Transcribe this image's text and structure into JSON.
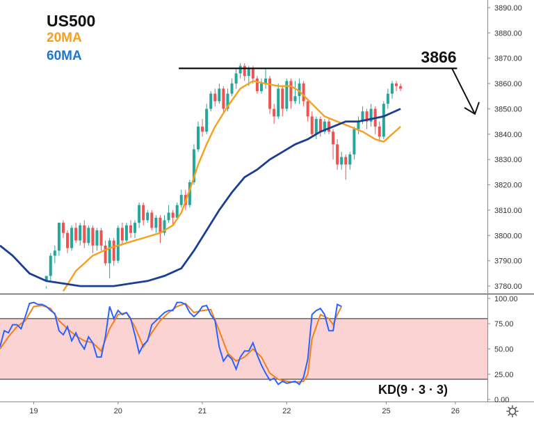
{
  "chart_data": [
    {
      "type": "candlestick",
      "symbol": "US500",
      "ma_labels": [
        {
          "name": "20MA",
          "color": "#f5a01e"
        },
        {
          "name": "60MA",
          "color": "#1f76d2"
        }
      ],
      "y_ticks": [
        "3780.00",
        "3790.00",
        "3800.00",
        "3810.00",
        "3820.00",
        "3830.00",
        "3840.00",
        "3850.00",
        "3860.00",
        "3870.00",
        "3880.00",
        "3890.00"
      ],
      "ylim": [
        3777,
        3893
      ],
      "x_ticks": [
        "19",
        "20",
        "21",
        "22",
        "25",
        "26"
      ],
      "x_tick_positions": [
        19.0,
        20.0,
        21.0,
        22.0,
        23.18,
        24.0
      ],
      "xlim": [
        18.6,
        24.38
      ],
      "resistance": {
        "value": 3866,
        "label": "3866",
        "x_from": 20.72,
        "x_to": 24.02
      },
      "colors": {
        "up": "#26a69a",
        "down": "#ef5350",
        "ma20": "#f5a01e",
        "ma60": "#1a3e93",
        "resistance": "#111111"
      },
      "candles": [
        [
          19.15,
          3782,
          3784,
          3780,
          3779
        ],
        [
          19.2,
          3784,
          3792,
          3793,
          3782
        ],
        [
          19.25,
          3792,
          3794,
          3796,
          3789
        ],
        [
          19.3,
          3794,
          3805,
          3805,
          3792
        ],
        [
          19.35,
          3805,
          3801,
          3806,
          3799
        ],
        [
          19.4,
          3801,
          3795,
          3802,
          3793
        ],
        [
          19.45,
          3795,
          3803,
          3804,
          3794
        ],
        [
          19.5,
          3803,
          3798,
          3805,
          3797
        ],
        [
          19.55,
          3798,
          3804,
          3805,
          3796
        ],
        [
          19.6,
          3804,
          3797,
          3806,
          3795
        ],
        [
          19.65,
          3797,
          3803,
          3804,
          3796
        ],
        [
          19.7,
          3803,
          3796,
          3804,
          3793
        ],
        [
          19.75,
          3796,
          3802,
          3803,
          3794
        ],
        [
          19.8,
          3802,
          3796,
          3803,
          3794
        ],
        [
          19.85,
          3796,
          3789,
          3798,
          3788
        ],
        [
          19.9,
          3789,
          3798,
          3799,
          3783
        ],
        [
          19.95,
          3798,
          3790,
          3799,
          3788
        ],
        [
          20.0,
          3790,
          3803,
          3804,
          3789
        ],
        [
          20.05,
          3803,
          3798,
          3805,
          3796
        ],
        [
          20.1,
          3798,
          3804,
          3805,
          3797
        ],
        [
          20.15,
          3804,
          3801,
          3806,
          3799
        ],
        [
          20.2,
          3801,
          3805,
          3806,
          3799
        ],
        [
          20.25,
          3805,
          3812,
          3813,
          3803
        ],
        [
          20.3,
          3812,
          3806,
          3813,
          3804
        ],
        [
          20.35,
          3806,
          3809,
          3810,
          3805
        ],
        [
          20.4,
          3809,
          3803,
          3810,
          3802
        ],
        [
          20.45,
          3803,
          3807,
          3808,
          3801
        ],
        [
          20.5,
          3807,
          3801,
          3808,
          3797
        ],
        [
          20.55,
          3801,
          3806,
          3808,
          3800
        ],
        [
          20.6,
          3806,
          3809,
          3812,
          3805
        ],
        [
          20.65,
          3809,
          3807,
          3810,
          3804
        ],
        [
          20.7,
          3807,
          3812,
          3813,
          3806
        ],
        [
          20.75,
          3812,
          3816,
          3818,
          3811
        ],
        [
          20.8,
          3816,
          3812,
          3818,
          3810
        ],
        [
          20.85,
          3812,
          3821,
          3822,
          3811
        ],
        [
          20.9,
          3821,
          3834,
          3836,
          3820
        ],
        [
          20.95,
          3834,
          3843,
          3845,
          3833
        ],
        [
          21.0,
          3843,
          3841,
          3846,
          3839
        ],
        [
          21.05,
          3841,
          3850,
          3852,
          3840
        ],
        [
          21.1,
          3850,
          3856,
          3857,
          3849
        ],
        [
          21.15,
          3856,
          3853,
          3858,
          3851
        ],
        [
          21.2,
          3853,
          3858,
          3860,
          3852
        ],
        [
          21.25,
          3858,
          3850,
          3859,
          3848
        ],
        [
          21.3,
          3850,
          3856,
          3858,
          3849
        ],
        [
          21.35,
          3856,
          3860,
          3862,
          3855
        ],
        [
          21.4,
          3860,
          3864,
          3866,
          3858
        ],
        [
          21.45,
          3864,
          3867,
          3868,
          3862
        ],
        [
          21.5,
          3867,
          3863,
          3868,
          3861
        ],
        [
          21.55,
          3863,
          3866,
          3867,
          3859
        ],
        [
          21.6,
          3866,
          3862,
          3867,
          3860
        ],
        [
          21.65,
          3862,
          3857,
          3863,
          3856
        ],
        [
          21.7,
          3857,
          3860,
          3862,
          3856
        ],
        [
          21.75,
          3860,
          3862,
          3866,
          3858
        ],
        [
          21.8,
          3862,
          3850,
          3863,
          3848
        ],
        [
          21.85,
          3850,
          3847,
          3852,
          3844
        ],
        [
          21.9,
          3847,
          3858,
          3860,
          3846
        ],
        [
          21.95,
          3858,
          3850,
          3859,
          3847
        ],
        [
          22.0,
          3850,
          3861,
          3862,
          3849
        ],
        [
          22.05,
          3861,
          3853,
          3862,
          3850
        ],
        [
          22.1,
          3853,
          3855,
          3861,
          3852
        ],
        [
          22.15,
          3855,
          3860,
          3862,
          3852
        ],
        [
          22.2,
          3860,
          3853,
          3861,
          3851
        ],
        [
          22.25,
          3853,
          3847,
          3854,
          3845
        ],
        [
          22.3,
          3847,
          3840,
          3849,
          3839
        ],
        [
          22.35,
          3840,
          3846,
          3847,
          3838
        ],
        [
          22.4,
          3846,
          3841,
          3847,
          3839
        ],
        [
          22.45,
          3841,
          3845,
          3846,
          3840
        ],
        [
          22.5,
          3845,
          3841,
          3846,
          3840
        ],
        [
          22.55,
          3841,
          3836,
          3842,
          3830
        ],
        [
          22.6,
          3836,
          3828,
          3838,
          3826
        ],
        [
          22.65,
          3828,
          3831,
          3833,
          3826
        ],
        [
          22.7,
          3831,
          3828,
          3832,
          3822
        ],
        [
          22.75,
          3828,
          3832,
          3833,
          3826
        ],
        [
          22.8,
          3832,
          3842,
          3843,
          3830
        ],
        [
          22.85,
          3842,
          3845,
          3847,
          3840
        ],
        [
          22.9,
          3845,
          3849,
          3851,
          3844
        ],
        [
          22.95,
          3849,
          3845,
          3850,
          3842
        ],
        [
          23.0,
          3845,
          3850,
          3852,
          3843
        ],
        [
          23.05,
          3850,
          3843,
          3851,
          3840
        ],
        [
          23.1,
          3843,
          3839,
          3845,
          3837
        ],
        [
          23.15,
          3839,
          3852,
          3853,
          3838
        ],
        [
          23.2,
          3852,
          3856,
          3858,
          3850
        ],
        [
          23.25,
          3856,
          3860,
          3861,
          3854
        ],
        [
          23.3,
          3860,
          3859,
          3861,
          3857
        ],
        [
          23.35,
          3859,
          3858,
          3860,
          3857
        ]
      ],
      "ma20": [
        [
          19.35,
          3778
        ],
        [
          19.5,
          3786
        ],
        [
          19.7,
          3792
        ],
        [
          19.9,
          3795
        ],
        [
          20.1,
          3797
        ],
        [
          20.3,
          3799
        ],
        [
          20.5,
          3801
        ],
        [
          20.65,
          3804
        ],
        [
          20.75,
          3809
        ],
        [
          20.85,
          3818
        ],
        [
          20.95,
          3828
        ],
        [
          21.05,
          3836
        ],
        [
          21.15,
          3843
        ],
        [
          21.3,
          3851
        ],
        [
          21.45,
          3858
        ],
        [
          21.6,
          3861
        ],
        [
          21.75,
          3860
        ],
        [
          21.9,
          3859
        ],
        [
          22.05,
          3859
        ],
        [
          22.15,
          3857
        ],
        [
          22.3,
          3852
        ],
        [
          22.45,
          3847
        ],
        [
          22.6,
          3845
        ],
        [
          22.75,
          3843
        ],
        [
          22.9,
          3841
        ],
        [
          23.05,
          3838
        ],
        [
          23.15,
          3837
        ],
        [
          23.25,
          3840
        ],
        [
          23.35,
          3843
        ]
      ],
      "ma60": [
        [
          18.6,
          3796
        ],
        [
          18.75,
          3792
        ],
        [
          18.95,
          3785
        ],
        [
          19.15,
          3782
        ],
        [
          19.35,
          3781
        ],
        [
          19.55,
          3780
        ],
        [
          19.75,
          3780
        ],
        [
          19.95,
          3780
        ],
        [
          20.15,
          3781
        ],
        [
          20.35,
          3782
        ],
        [
          20.55,
          3784
        ],
        [
          20.75,
          3787
        ],
        [
          20.9,
          3794
        ],
        [
          21.05,
          3802
        ],
        [
          21.2,
          3810
        ],
        [
          21.35,
          3817
        ],
        [
          21.5,
          3823
        ],
        [
          21.65,
          3826
        ],
        [
          21.8,
          3830
        ],
        [
          21.95,
          3833
        ],
        [
          22.1,
          3836
        ],
        [
          22.25,
          3838
        ],
        [
          22.4,
          3841
        ],
        [
          22.55,
          3843
        ],
        [
          22.7,
          3845
        ],
        [
          22.85,
          3845
        ],
        [
          23.0,
          3846
        ],
        [
          23.15,
          3847
        ],
        [
          23.35,
          3850
        ]
      ]
    },
    {
      "type": "line",
      "title": "KD(9 · 3 · 3)",
      "y_ticks": [
        "0.00",
        "25.00",
        "50.00",
        "75.00",
        "100.00"
      ],
      "ylim": [
        -2,
        104
      ],
      "band": [
        20,
        80
      ],
      "colors": {
        "k": "#2962ff",
        "d": "#f57f17",
        "band_fill": "#fbd3d3",
        "band_line": "#222222"
      },
      "k": [
        [
          18.6,
          52
        ],
        [
          18.65,
          68
        ],
        [
          18.7,
          66
        ],
        [
          18.75,
          74
        ],
        [
          18.8,
          74
        ],
        [
          18.85,
          70
        ],
        [
          18.9,
          82
        ],
        [
          18.95,
          95
        ],
        [
          19.0,
          96
        ],
        [
          19.05,
          94
        ],
        [
          19.1,
          94
        ],
        [
          19.15,
          92
        ],
        [
          19.2,
          88
        ],
        [
          19.25,
          85
        ],
        [
          19.3,
          68
        ],
        [
          19.35,
          64
        ],
        [
          19.4,
          72
        ],
        [
          19.45,
          58
        ],
        [
          19.5,
          66
        ],
        [
          19.55,
          56
        ],
        [
          19.6,
          50
        ],
        [
          19.65,
          62
        ],
        [
          19.7,
          56
        ],
        [
          19.75,
          42
        ],
        [
          19.8,
          42
        ],
        [
          19.85,
          62
        ],
        [
          19.9,
          92
        ],
        [
          19.95,
          80
        ],
        [
          20.0,
          88
        ],
        [
          20.05,
          84
        ],
        [
          20.1,
          86
        ],
        [
          20.15,
          80
        ],
        [
          20.2,
          64
        ],
        [
          20.25,
          46
        ],
        [
          20.3,
          54
        ],
        [
          20.35,
          58
        ],
        [
          20.4,
          74
        ],
        [
          20.45,
          78
        ],
        [
          20.5,
          82
        ],
        [
          20.55,
          86
        ],
        [
          20.6,
          88
        ],
        [
          20.65,
          88
        ],
        [
          20.7,
          96
        ],
        [
          20.75,
          96
        ],
        [
          20.8,
          94
        ],
        [
          20.85,
          86
        ],
        [
          20.9,
          82
        ],
        [
          20.95,
          86
        ],
        [
          21.0,
          92
        ],
        [
          21.05,
          93
        ],
        [
          21.1,
          84
        ],
        [
          21.15,
          78
        ],
        [
          21.2,
          52
        ],
        [
          21.25,
          38
        ],
        [
          21.3,
          44
        ],
        [
          21.35,
          40
        ],
        [
          21.4,
          30
        ],
        [
          21.45,
          42
        ],
        [
          21.5,
          48
        ],
        [
          21.55,
          48
        ],
        [
          21.6,
          56
        ],
        [
          21.65,
          44
        ],
        [
          21.7,
          34
        ],
        [
          21.75,
          26
        ],
        [
          21.8,
          19
        ],
        [
          21.85,
          21
        ],
        [
          21.9,
          15
        ],
        [
          21.95,
          18
        ],
        [
          22.0,
          16
        ],
        [
          22.05,
          17
        ],
        [
          22.1,
          18
        ],
        [
          22.15,
          15
        ],
        [
          22.2,
          22
        ],
        [
          22.25,
          40
        ],
        [
          22.3,
          84
        ],
        [
          22.35,
          88
        ],
        [
          22.4,
          90
        ],
        [
          22.45,
          84
        ],
        [
          22.5,
          68
        ],
        [
          22.55,
          68
        ],
        [
          22.6,
          94
        ],
        [
          22.65,
          92
        ]
      ],
      "d": [
        [
          18.6,
          50
        ],
        [
          18.7,
          62
        ],
        [
          18.8,
          72
        ],
        [
          18.9,
          78
        ],
        [
          19.0,
          92
        ],
        [
          19.1,
          93
        ],
        [
          19.2,
          90
        ],
        [
          19.3,
          78
        ],
        [
          19.4,
          70
        ],
        [
          19.5,
          63
        ],
        [
          19.6,
          58
        ],
        [
          19.7,
          56
        ],
        [
          19.8,
          48
        ],
        [
          19.9,
          70
        ],
        [
          20.0,
          84
        ],
        [
          20.1,
          86
        ],
        [
          20.2,
          72
        ],
        [
          20.3,
          52
        ],
        [
          20.4,
          66
        ],
        [
          20.5,
          78
        ],
        [
          20.6,
          86
        ],
        [
          20.7,
          92
        ],
        [
          20.8,
          95
        ],
        [
          20.9,
          86
        ],
        [
          21.0,
          88
        ],
        [
          21.1,
          89
        ],
        [
          21.2,
          68
        ],
        [
          21.3,
          46
        ],
        [
          21.4,
          38
        ],
        [
          21.5,
          42
        ],
        [
          21.6,
          50
        ],
        [
          21.7,
          42
        ],
        [
          21.8,
          26
        ],
        [
          21.9,
          20
        ],
        [
          22.0,
          18
        ],
        [
          22.1,
          17
        ],
        [
          22.2,
          18
        ],
        [
          22.25,
          25
        ],
        [
          22.3,
          60
        ],
        [
          22.4,
          84
        ],
        [
          22.5,
          80
        ],
        [
          22.55,
          74
        ],
        [
          22.6,
          84
        ],
        [
          22.65,
          92
        ]
      ]
    }
  ],
  "time_axis_icon": "gear-icon"
}
